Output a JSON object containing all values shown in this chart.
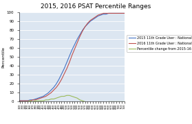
{
  "title": "2015, 2016 PSAT Percentile Ranges",
  "ylabel": "Percentile",
  "legend": [
    "2015 11th Grade User : National",
    "2016 11th Grade User : National",
    "Percentile change from 2015-16"
  ],
  "line_colors": [
    "#4472c4",
    "#c0504d",
    "#9bbb59"
  ],
  "plot_bg": "#dce6f1",
  "fig_bg": "#ffffff",
  "ylim": [
    0,
    100
  ],
  "scores": [
    320,
    330,
    340,
    350,
    360,
    370,
    380,
    390,
    400,
    410,
    420,
    430,
    440,
    450,
    460,
    470,
    480,
    490,
    500,
    510,
    520,
    530,
    540,
    550,
    560,
    570,
    580,
    590,
    600,
    610,
    620,
    630,
    640,
    650,
    660,
    670,
    680,
    690,
    700,
    710,
    720
  ],
  "psat2015": [
    1,
    1,
    1,
    1,
    2,
    2,
    3,
    4,
    5,
    6,
    8,
    10,
    13,
    16,
    20,
    25,
    31,
    37,
    44,
    51,
    58,
    64,
    70,
    75,
    80,
    84,
    87,
    90,
    92,
    94,
    96,
    97,
    98,
    98,
    99,
    99,
    99,
    99,
    99,
    99,
    99
  ],
  "psat2016": [
    1,
    1,
    1,
    1,
    1,
    2,
    2,
    3,
    4,
    5,
    6,
    8,
    10,
    13,
    16,
    20,
    25,
    31,
    37,
    44,
    52,
    59,
    66,
    73,
    79,
    84,
    88,
    91,
    93,
    95,
    97,
    98,
    99,
    99,
    99,
    99,
    99,
    99,
    99,
    99,
    99
  ],
  "diff": [
    0,
    0,
    0,
    0,
    1,
    0,
    1,
    1,
    1,
    1,
    2,
    2,
    3,
    3,
    4,
    5,
    6,
    6,
    7,
    7,
    6,
    5,
    4,
    2,
    1,
    0,
    -1,
    -1,
    -1,
    -1,
    -1,
    -1,
    -1,
    -1,
    0,
    0,
    0,
    0,
    0,
    0,
    0
  ]
}
